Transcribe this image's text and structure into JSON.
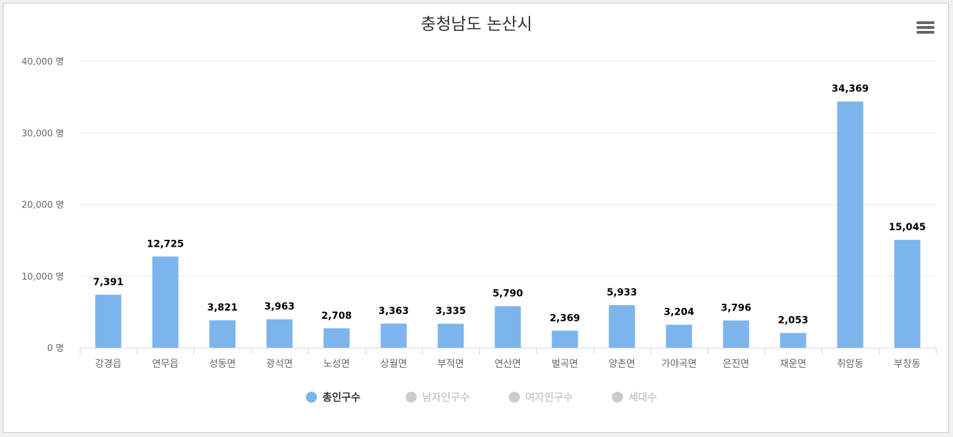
{
  "chart_data": {
    "type": "bar",
    "title": "충청남도 논산시",
    "categories": [
      "강경읍",
      "연무읍",
      "성동면",
      "광석면",
      "노성면",
      "상월면",
      "부적면",
      "연산면",
      "벌곡면",
      "양촌면",
      "가야곡면",
      "은진면",
      "채운면",
      "취암동",
      "부창동"
    ],
    "series": [
      {
        "name": "총인구수",
        "visible": true,
        "color": "#7cb5ec",
        "values": [
          7391,
          12725,
          3821,
          3963,
          2708,
          3363,
          3335,
          5790,
          2369,
          5933,
          3204,
          3796,
          2053,
          34369,
          15045
        ],
        "labels": [
          "7,391",
          "12,725",
          "3,821",
          "3,963",
          "2,708",
          "3,363",
          "3,335",
          "5,790",
          "2,369",
          "5,933",
          "3,204",
          "3,796",
          "2,053",
          "34,369",
          "15,045"
        ]
      },
      {
        "name": "남자인구수",
        "visible": false,
        "color": "#cccccc"
      },
      {
        "name": "여자인구수",
        "visible": false,
        "color": "#cccccc"
      },
      {
        "name": "세대수",
        "visible": false,
        "color": "#cccccc"
      }
    ],
    "y_ticks": [
      0,
      10000,
      20000,
      30000,
      40000
    ],
    "y_tick_labels": [
      "0 명",
      "10,000 명",
      "20,000 명",
      "30,000 명",
      "40,000 명"
    ],
    "ylim": [
      0,
      40000
    ],
    "grid": true,
    "legend": "bottom-center",
    "colors": {
      "bar": "#7cb5ec",
      "grid": "#e6e6e6",
      "axis": "#ccd6eb",
      "legend_active_text": "#333333",
      "legend_inactive": "#cccccc"
    }
  },
  "menu_icon": "hamburger-menu-icon"
}
